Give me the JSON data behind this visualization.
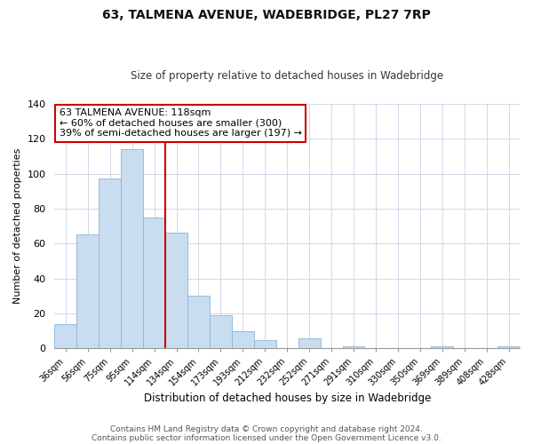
{
  "title": "63, TALMENA AVENUE, WADEBRIDGE, PL27 7RP",
  "subtitle": "Size of property relative to detached houses in Wadebridge",
  "xlabel": "Distribution of detached houses by size in Wadebridge",
  "ylabel": "Number of detached properties",
  "bar_labels": [
    "36sqm",
    "56sqm",
    "75sqm",
    "95sqm",
    "114sqm",
    "134sqm",
    "154sqm",
    "173sqm",
    "193sqm",
    "212sqm",
    "232sqm",
    "252sqm",
    "271sqm",
    "291sqm",
    "310sqm",
    "330sqm",
    "350sqm",
    "369sqm",
    "389sqm",
    "408sqm",
    "428sqm"
  ],
  "bar_values": [
    14,
    65,
    97,
    114,
    75,
    66,
    30,
    19,
    10,
    5,
    0,
    6,
    0,
    1,
    0,
    0,
    0,
    1,
    0,
    0,
    1
  ],
  "bar_color": "#c9ddf0",
  "bar_edge_color": "#8ab4d4",
  "marker_line_color": "#cc0000",
  "annotation_title": "63 TALMENA AVENUE: 118sqm",
  "annotation_line1": "← 60% of detached houses are smaller (300)",
  "annotation_line2": "39% of semi-detached houses are larger (197) →",
  "annotation_box_edgecolor": "#cc0000",
  "annotation_box_facecolor": "#ffffff",
  "ylim": [
    0,
    140
  ],
  "yticks": [
    0,
    20,
    40,
    60,
    80,
    100,
    120,
    140
  ],
  "footer1": "Contains HM Land Registry data © Crown copyright and database right 2024.",
  "footer2": "Contains public sector information licensed under the Open Government Licence v3.0.",
  "title_fontsize": 10,
  "subtitle_fontsize": 8.5,
  "footer_fontsize": 6.5
}
